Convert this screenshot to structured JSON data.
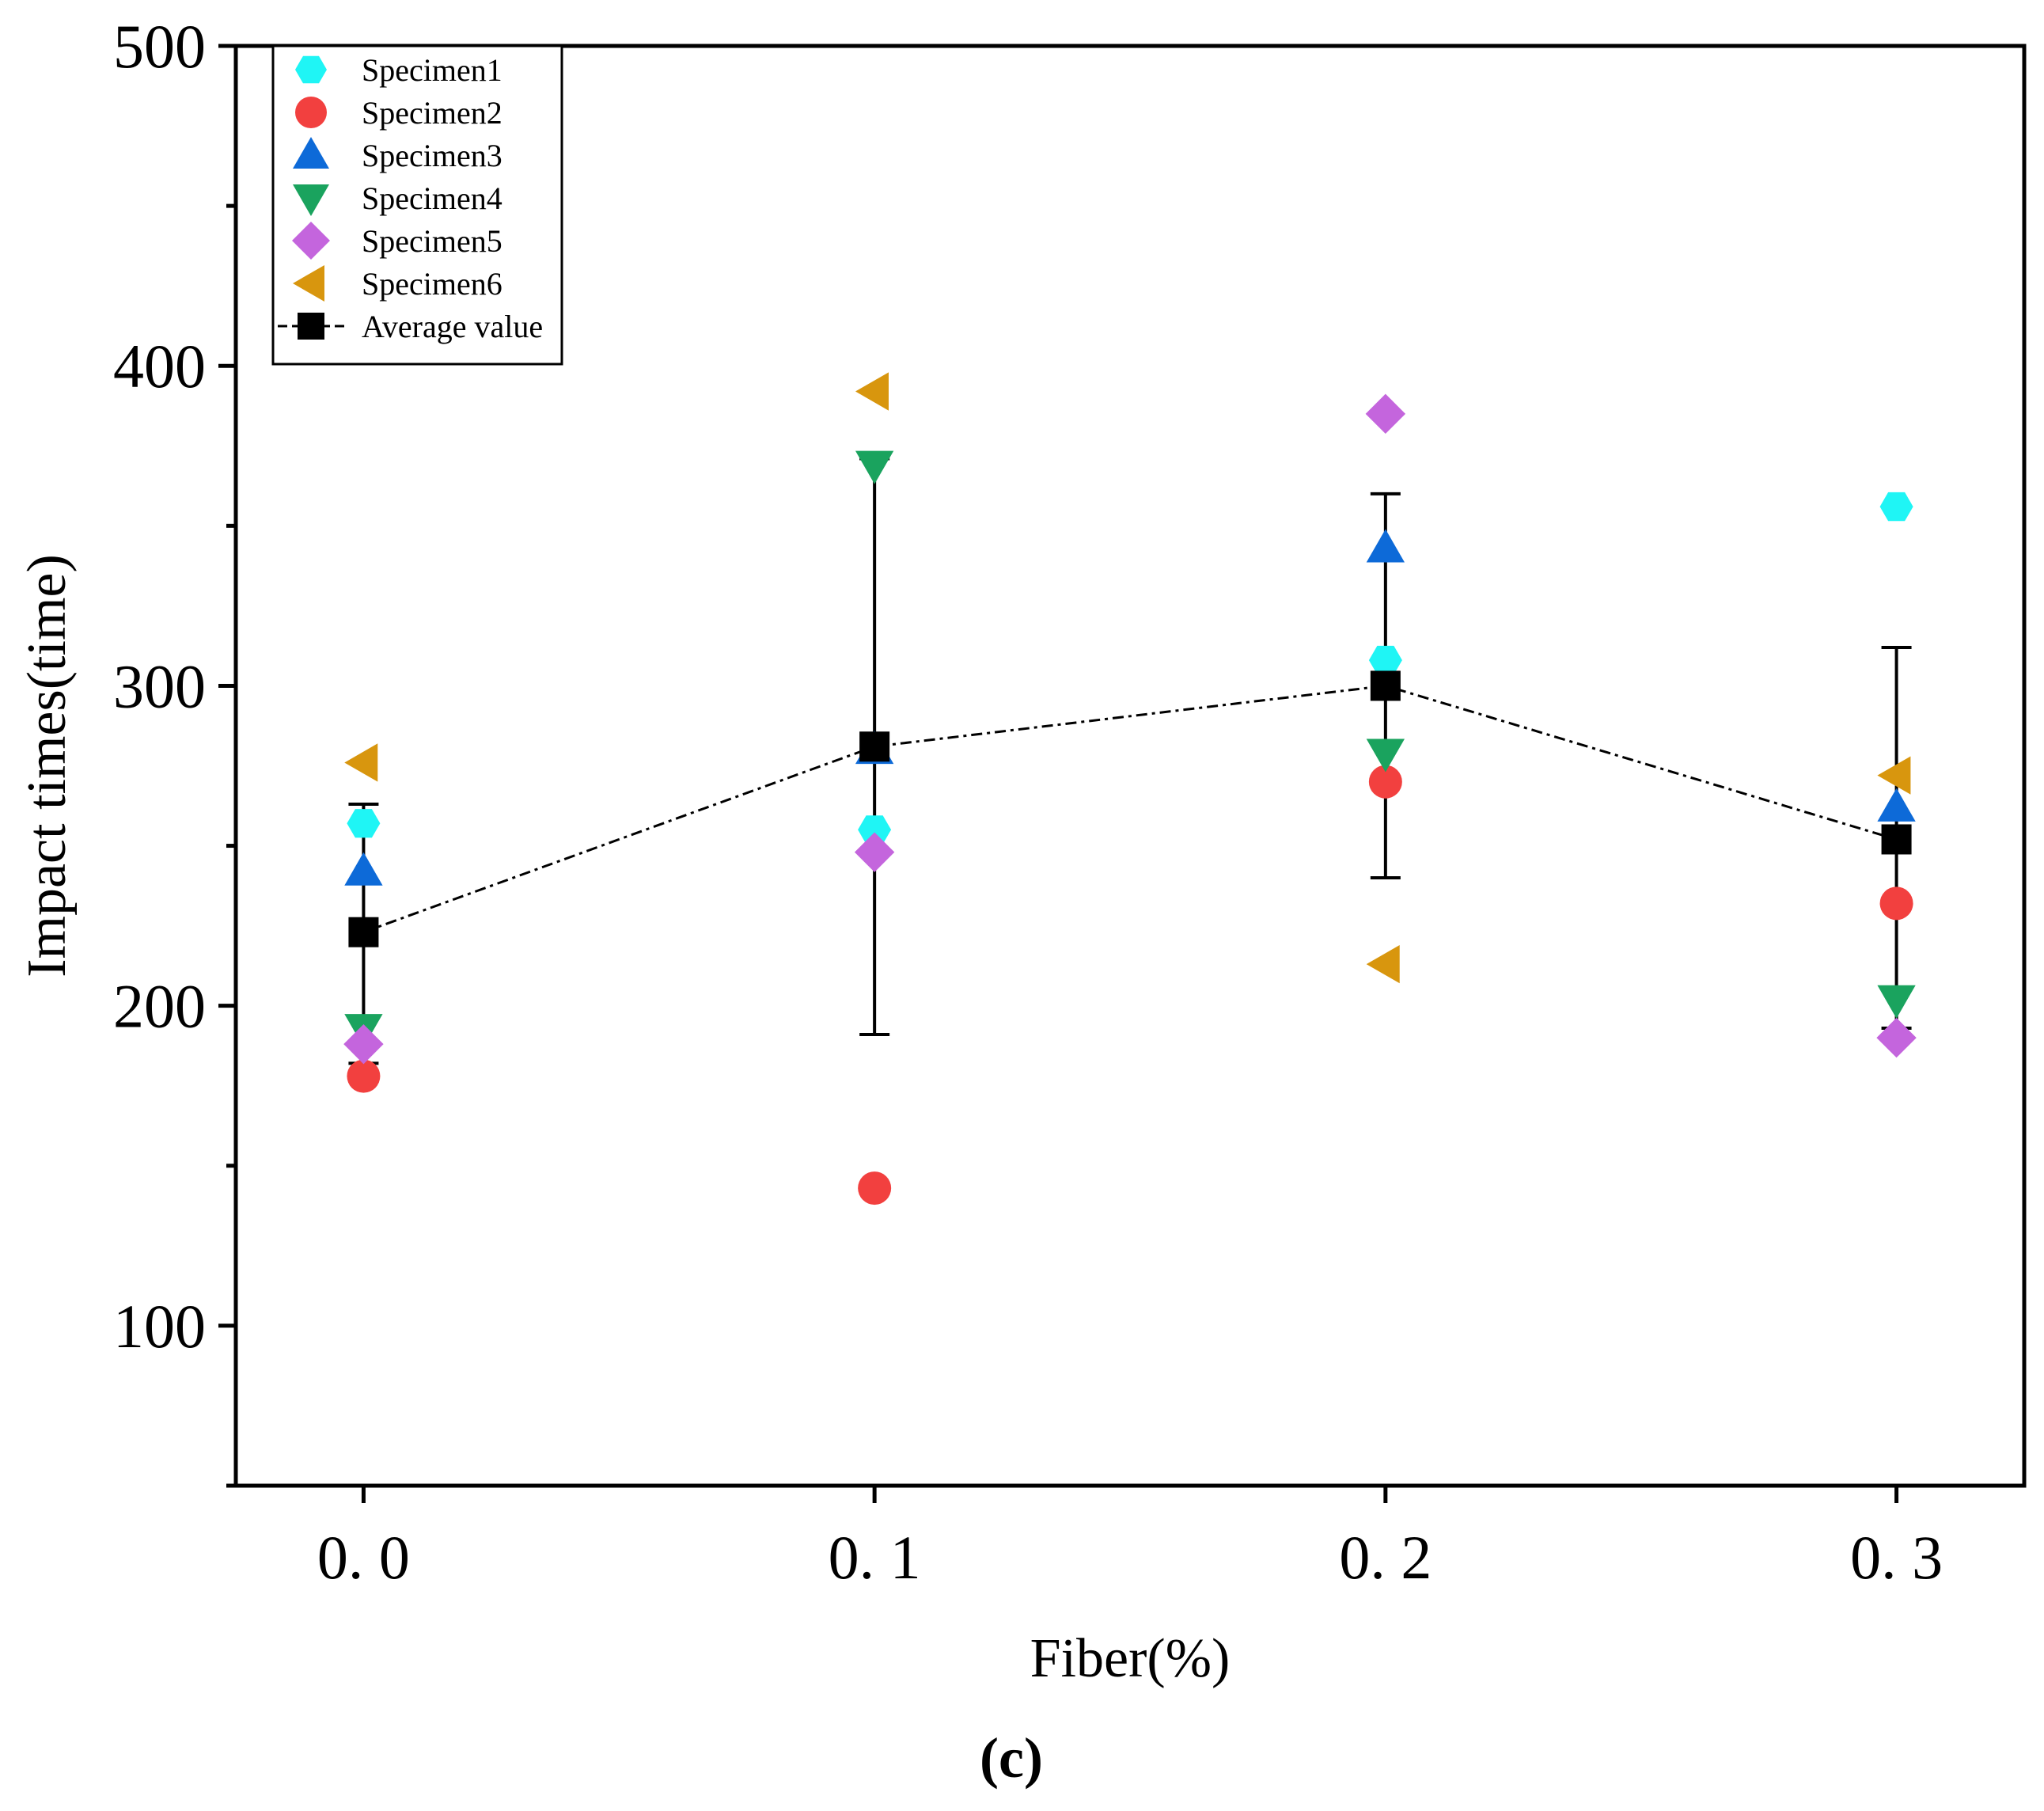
{
  "chart_data": {
    "type": "scatter",
    "title": "",
    "xlabel": "Fiber(%)",
    "ylabel": "Impact times(time)",
    "panel_label": "(c)",
    "x": [
      0.0,
      0.1,
      0.2,
      0.3
    ],
    "x_tick_labels": [
      "0. 0",
      "0. 1",
      "0. 2",
      "0. 3"
    ],
    "xlim": [
      -0.025,
      0.325
    ],
    "ylim": [
      50,
      500
    ],
    "y_ticks": [
      100,
      200,
      300,
      400,
      500
    ],
    "y_tick_labels": [
      "100",
      "200",
      "300",
      "400",
      "500"
    ],
    "y_minor_ticks": [
      50,
      150,
      250,
      350,
      450
    ],
    "legend_position": "top-left",
    "series": [
      {
        "name": "Specimen1",
        "marker": "hexagon",
        "color": "#1ff5f5",
        "values": [
          257,
          255,
          308,
          356
        ]
      },
      {
        "name": "Specimen2",
        "marker": "circle",
        "color": "#f2403f",
        "values": [
          178,
          143,
          270,
          232
        ]
      },
      {
        "name": "Specimen3",
        "marker": "triangle-up",
        "color": "#0d6ad8",
        "values": [
          242,
          280,
          343,
          262
        ]
      },
      {
        "name": "Specimen4",
        "marker": "triangle-down",
        "color": "#1aa35e",
        "values": [
          193,
          369,
          279,
          202
        ]
      },
      {
        "name": "Specimen5",
        "marker": "diamond",
        "color": "#c465dd",
        "values": [
          188,
          248,
          385,
          190
        ]
      },
      {
        "name": "Specimen6",
        "marker": "triangle-left",
        "color": "#d8960e",
        "values": [
          276,
          392,
          213,
          272
        ]
      }
    ],
    "average": {
      "name": "Average value",
      "marker": "square",
      "color": "#000000",
      "line_style": "dash-dot",
      "values": [
        223,
        281,
        300,
        252
      ],
      "error_low": [
        182,
        191,
        240,
        193
      ],
      "error_high": [
        263,
        371,
        360,
        312
      ]
    }
  }
}
